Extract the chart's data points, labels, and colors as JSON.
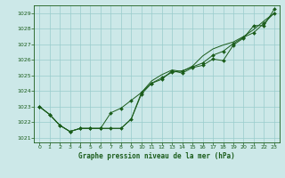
{
  "title": "Graphe pression niveau de la mer (hPa)",
  "background_color": "#cce8e8",
  "grid_color": "#99cccc",
  "line_color": "#1a5c1a",
  "xlim": [
    -0.5,
    23.5
  ],
  "ylim": [
    1020.7,
    1029.5
  ],
  "yticks": [
    1021,
    1022,
    1023,
    1024,
    1025,
    1026,
    1027,
    1028,
    1029
  ],
  "xticks": [
    0,
    1,
    2,
    3,
    4,
    5,
    6,
    7,
    8,
    9,
    10,
    11,
    12,
    13,
    14,
    15,
    16,
    17,
    18,
    19,
    20,
    21,
    22,
    23
  ],
  "series1": [
    1023.0,
    1022.5,
    1021.8,
    1021.4,
    1021.6,
    1021.6,
    1021.6,
    1021.6,
    1021.6,
    1022.2,
    1023.8,
    1024.5,
    1024.75,
    1025.3,
    1025.15,
    1025.5,
    1025.65,
    1026.05,
    1025.95,
    1026.95,
    1027.4,
    1028.2,
    1028.2,
    1029.25
  ],
  "series2": [
    1023.0,
    1022.5,
    1021.8,
    1021.4,
    1021.6,
    1021.6,
    1021.6,
    1022.6,
    1022.9,
    1023.4,
    1023.9,
    1024.5,
    1024.85,
    1025.2,
    1025.3,
    1025.55,
    1025.8,
    1026.3,
    1026.55,
    1027.05,
    1027.45,
    1027.75,
    1028.35,
    1029.0
  ],
  "series3": [
    1023.0,
    1022.5,
    1021.8,
    1021.4,
    1021.6,
    1021.6,
    1021.6,
    1021.6,
    1021.6,
    1022.2,
    1023.9,
    1024.65,
    1025.05,
    1025.35,
    1025.25,
    1025.6,
    1026.25,
    1026.7,
    1026.95,
    1027.15,
    1027.5,
    1027.95,
    1028.5,
    1029.0
  ]
}
